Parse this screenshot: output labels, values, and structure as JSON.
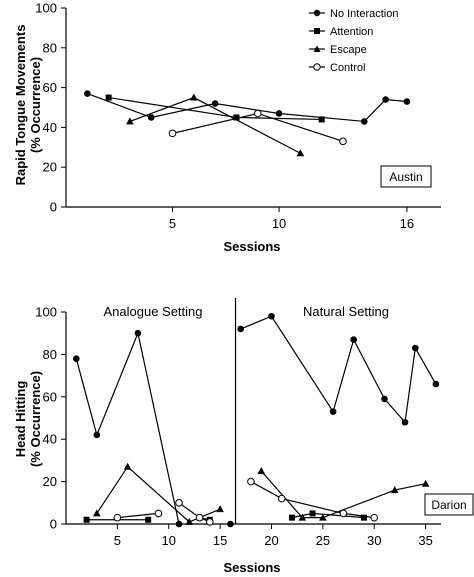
{
  "chart_data": [
    {
      "type": "line",
      "participant": "Austin",
      "ylabel_line1": "Rapid Tongue Movements",
      "ylabel_line2": "(% Occurrence)",
      "xlabel": "Sessions",
      "ylim": [
        0,
        100
      ],
      "yticks": [
        0,
        20,
        40,
        60,
        80,
        100
      ],
      "xlim": [
        0,
        17.6
      ],
      "xticks": [
        5,
        10,
        16
      ],
      "series": [
        {
          "name": "No Interaction",
          "marker": "circle",
          "x": [
            1,
            4,
            7,
            10,
            14,
            15,
            16
          ],
          "y": [
            57,
            45,
            52,
            47,
            43,
            54,
            53
          ]
        },
        {
          "name": "Attention",
          "marker": "square",
          "x": [
            2,
            8,
            12
          ],
          "y": [
            55,
            45,
            44
          ]
        },
        {
          "name": "Escape",
          "marker": "triangle",
          "x": [
            3,
            6,
            11
          ],
          "y": [
            43,
            55,
            27
          ]
        },
        {
          "name": "Control",
          "marker": "open-circle",
          "x": [
            5,
            9,
            13
          ],
          "y": [
            37,
            47,
            33
          ]
        }
      ]
    },
    {
      "type": "line",
      "participant": "Darion",
      "ylabel_line1": "Head Hitting",
      "ylabel_line2": "(% Occurrence)",
      "xlabel": "Sessions",
      "ylim": [
        0,
        100
      ],
      "yticks": [
        0,
        20,
        40,
        60,
        80,
        100
      ],
      "xlim": [
        0,
        36.5
      ],
      "xticks": [
        5,
        10,
        15,
        20,
        25,
        30,
        35
      ],
      "phase_change_x": 16.5,
      "phases": [
        "Analogue Setting",
        "Natural Setting"
      ],
      "series_segments": [
        {
          "series": "No Interaction",
          "marker": "circle",
          "x": [
            1,
            3,
            7,
            11
          ],
          "y": [
            78,
            42,
            90,
            0
          ]
        },
        {
          "series": "No Interaction",
          "marker": "circle",
          "x": [
            16
          ],
          "y": [
            0
          ]
        },
        {
          "series": "No Interaction",
          "marker": "circle",
          "x": [
            17,
            20,
            26,
            28,
            31,
            33,
            34,
            36
          ],
          "y": [
            92,
            98,
            53,
            87,
            59,
            48,
            83,
            66
          ]
        },
        {
          "series": "Attention",
          "marker": "square",
          "x": [
            2,
            8
          ],
          "y": [
            2,
            2
          ]
        },
        {
          "series": "Attention",
          "marker": "square",
          "x": [
            13,
            14
          ],
          "y": [
            3,
            2
          ]
        },
        {
          "series": "Attention",
          "marker": "square",
          "x": [
            22,
            24,
            29
          ],
          "y": [
            3,
            5,
            3
          ]
        },
        {
          "series": "Escape",
          "marker": "triangle",
          "x": [
            3,
            6,
            12,
            15
          ],
          "y": [
            5,
            27,
            1,
            7
          ]
        },
        {
          "series": "Escape",
          "marker": "triangle",
          "x": [
            19,
            23,
            25,
            32,
            35
          ],
          "y": [
            25,
            3,
            3,
            16,
            19
          ]
        },
        {
          "series": "Control",
          "marker": "open-circle",
          "x": [
            5,
            9
          ],
          "y": [
            3,
            5
          ]
        },
        {
          "series": "Control",
          "marker": "open-circle",
          "x": [
            11,
            13,
            14
          ],
          "y": [
            10,
            3,
            1
          ]
        },
        {
          "series": "Control",
          "marker": "open-circle",
          "x": [
            18,
            21,
            27,
            30
          ],
          "y": [
            20,
            12,
            5,
            3
          ]
        }
      ]
    }
  ]
}
